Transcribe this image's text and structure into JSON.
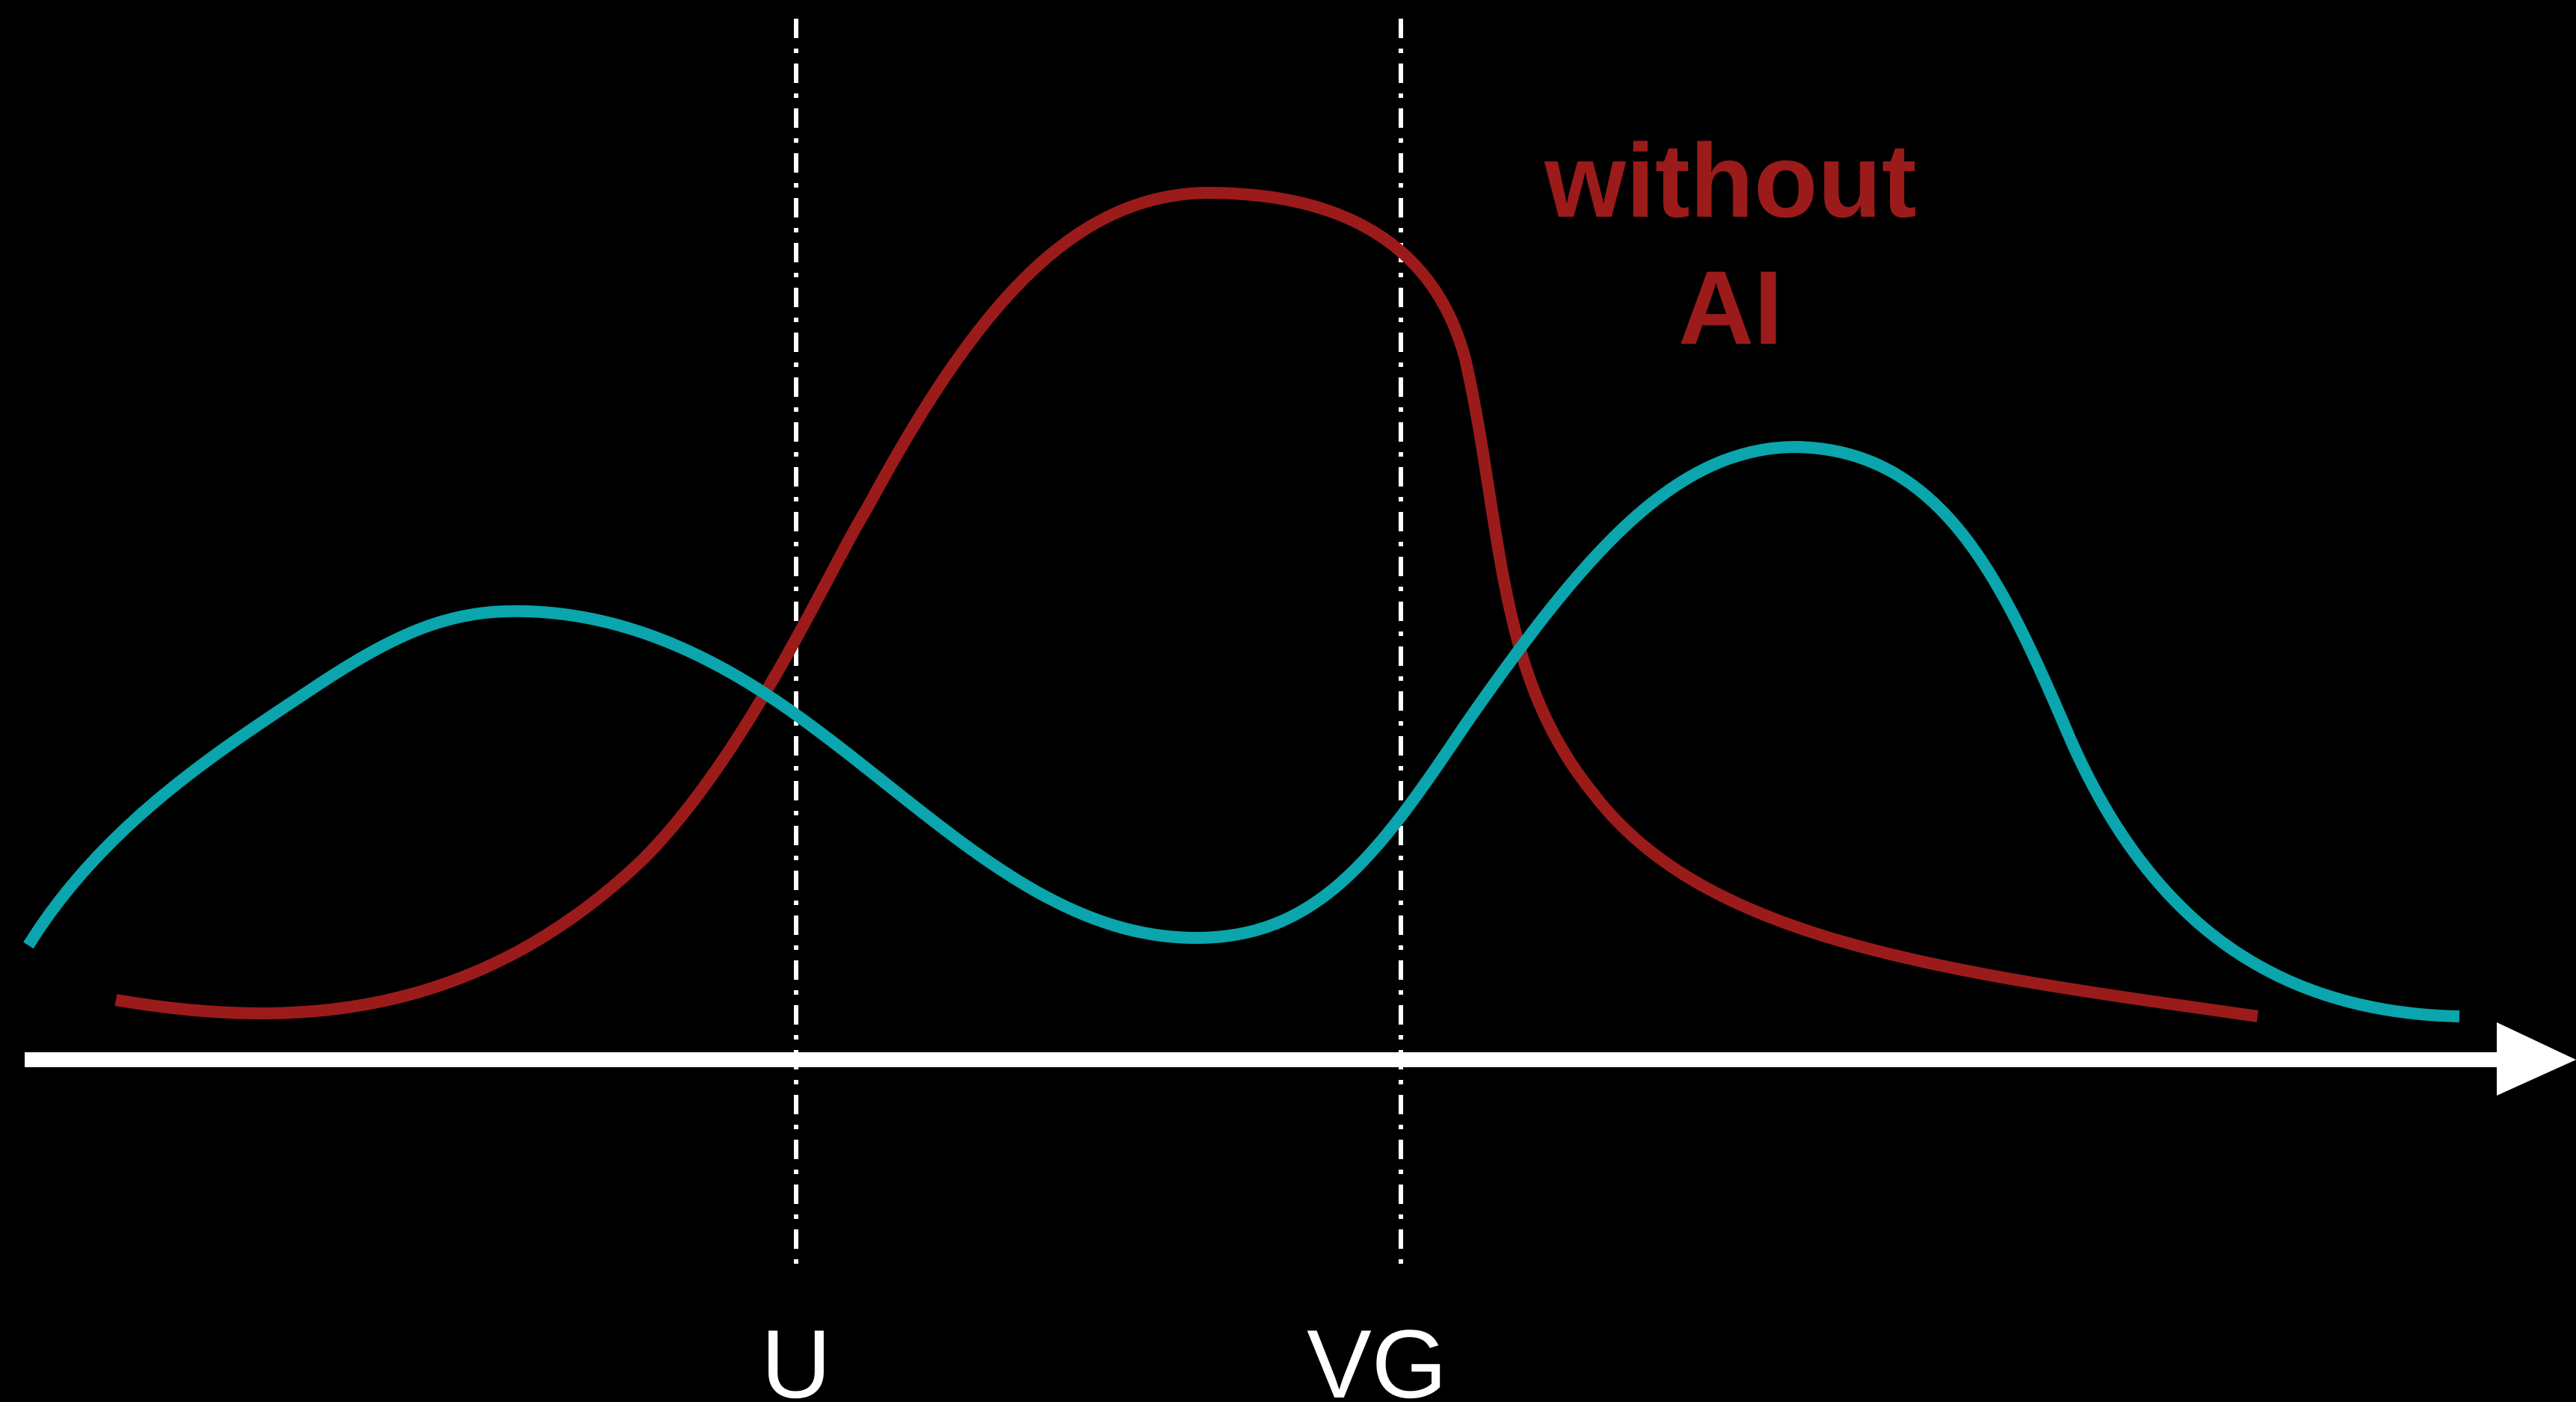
{
  "colors": {
    "background": "#000000",
    "axis": "#ffffff",
    "marker_line": "#ffffff",
    "curve_without_ai": "#9b1b1b",
    "curve_other": "#0aa5ad"
  },
  "markers": [
    {
      "label": "U"
    },
    {
      "label": "VG"
    }
  ],
  "annotation": {
    "line1": "without",
    "line2": "AI"
  },
  "curves": [
    {
      "key": "without_ai",
      "color": "#9b1b1b"
    },
    {
      "key": "other",
      "color": "#0aa5ad"
    }
  ]
}
